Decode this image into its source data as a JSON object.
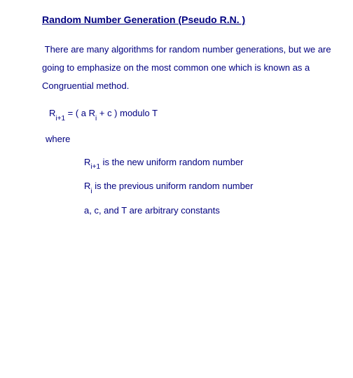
{
  "colors": {
    "text": "#000080",
    "background": "#ffffff"
  },
  "typography": {
    "font_family": "Verdana, Geneva, sans-serif",
    "title_fontsize": 14,
    "body_fontsize": 13,
    "sub_fontsize": 10
  },
  "title": "Random Number Generation (Pseudo R.N. )",
  "paragraph": "There are many algorithms for random number generations, but we are going to emphasize on the most common one which is known as a Congruential method.",
  "formula": {
    "lhs_var": "R",
    "lhs_sub": "i+1",
    "equals": "  = ( a R",
    "rhs_sub": "i",
    "tail": " + c ) modulo T"
  },
  "where_label": "where",
  "definitions": [
    {
      "var": "R",
      "sub": "i+1",
      "post_sub": " ",
      "desc": "is the new uniform random number"
    },
    {
      "var": "R",
      "sub": "i",
      "post_sub": "  ",
      "desc": "is the previous uniform random number"
    },
    {
      "var": "a, c, and T  ",
      "sub": "",
      "post_sub": "",
      "desc": "are arbitrary constants"
    }
  ]
}
